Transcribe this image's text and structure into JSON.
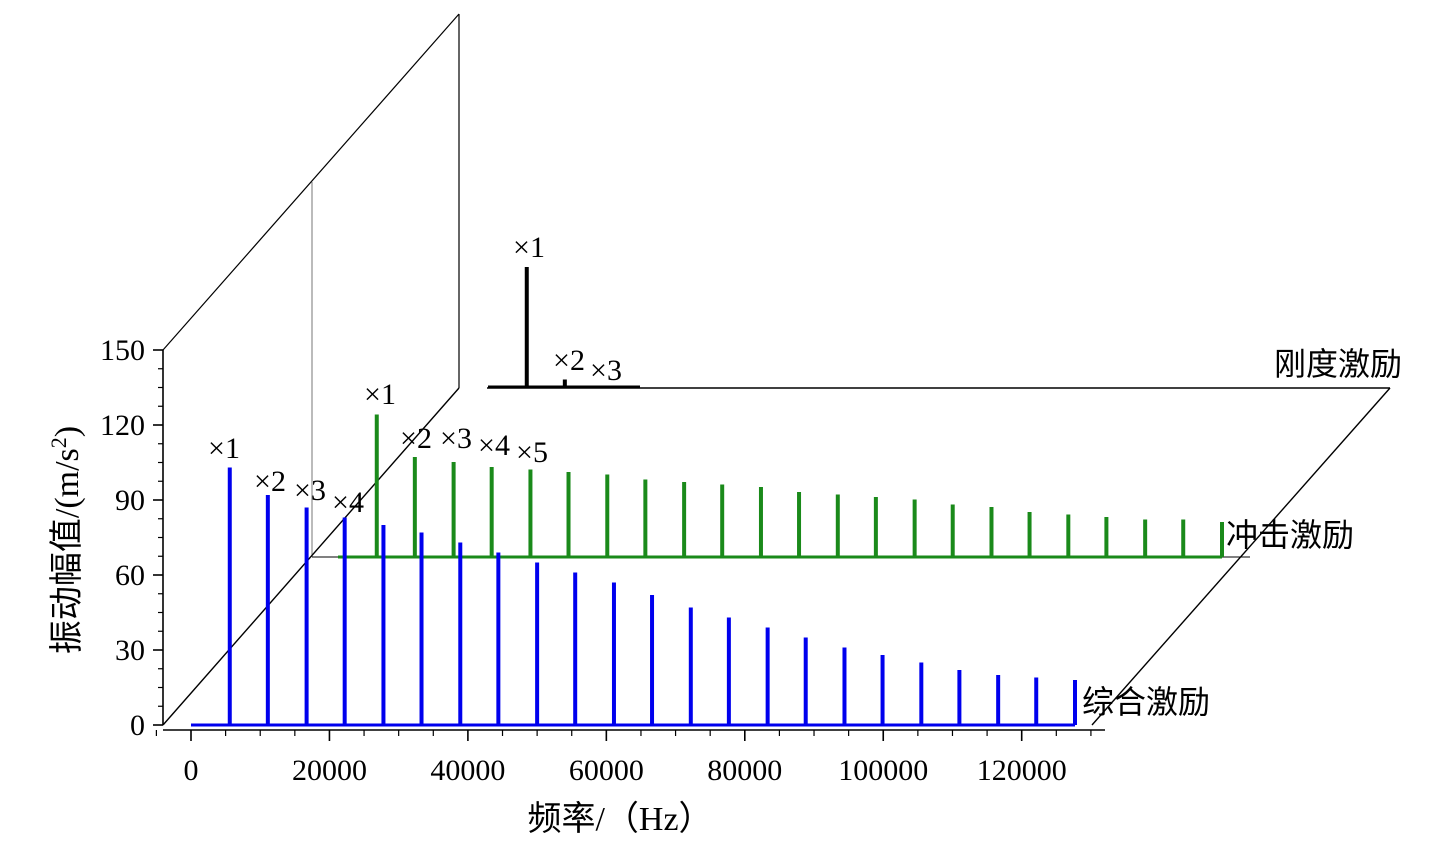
{
  "chart_data": {
    "type": "bar",
    "style": "3d-waterfall",
    "xlabel": "频率/（Hz）",
    "ylabel": "振动幅值/(m/s²)",
    "ylabel_parts": {
      "main": "振动幅值/(m/s",
      "sup": "2",
      "end": ")"
    },
    "xlim": [
      -5000,
      130000
    ],
    "ylim": [
      0,
      150
    ],
    "xticks": [
      0,
      20000,
      40000,
      60000,
      80000,
      100000,
      120000
    ],
    "yticks": [
      0,
      30,
      60,
      90,
      120,
      150
    ],
    "grid": false,
    "series": [
      {
        "name": "综合激励",
        "color": "#0000ee",
        "x": [
          5600,
          11100,
          16700,
          22200,
          27800,
          33300,
          38900,
          44400,
          50000,
          55500,
          61100,
          66600,
          72200,
          77700,
          83300,
          88800,
          94400,
          99900,
          105500,
          111000,
          116600,
          122100,
          127700
        ],
        "y": [
          103,
          92,
          87,
          83,
          80,
          77,
          73,
          69,
          65,
          61,
          57,
          52,
          47,
          43,
          39,
          35,
          31,
          28,
          25,
          22,
          20,
          19,
          18
        ],
        "annotations": [
          "×1",
          "×2",
          "×3",
          "×4"
        ]
      },
      {
        "name": "冲击激励",
        "color": "#1a8a1a",
        "x": [
          5600,
          11100,
          16700,
          22200,
          27800,
          33300,
          38900,
          44400,
          50000,
          55500,
          61100,
          66600,
          72200,
          77700,
          83300,
          88800,
          94400,
          99900,
          105500,
          111000,
          116600,
          122100,
          127700
        ],
        "y": [
          57,
          40,
          38,
          36,
          35,
          34,
          33,
          31,
          30,
          29,
          28,
          26,
          25,
          24,
          23,
          21,
          20,
          18,
          17,
          16,
          15,
          15,
          14
        ],
        "annotations": [
          "×1",
          "×2",
          "×3",
          "×4",
          "×5"
        ]
      },
      {
        "name": "刚度激励",
        "color": "#000000",
        "x": [
          5600,
          11100,
          16700
        ],
        "y": [
          48,
          3,
          0.6
        ],
        "annotations": [
          "×1",
          "×2",
          "×3"
        ]
      }
    ]
  }
}
